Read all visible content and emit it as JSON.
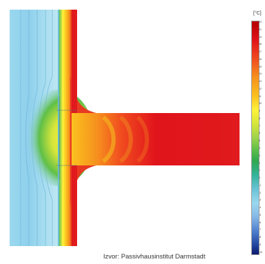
{
  "image": {
    "unit_label": "[°C]",
    "scale_labels": [
      "23",
      "21",
      "19",
      "18",
      "17",
      "16",
      "15",
      "14",
      "13",
      "12",
      "11",
      "10",
      "9",
      "8",
      "7",
      "6",
      "5",
      "4",
      "3",
      "2",
      "1",
      "0",
      "-1",
      "-2",
      "-3",
      "-4",
      "-5",
      "-6",
      "-7",
      "-8",
      "-9",
      "-10"
    ],
    "source_caption": "Izvor: Passivhausinstitut Darmstadt"
  }
}
